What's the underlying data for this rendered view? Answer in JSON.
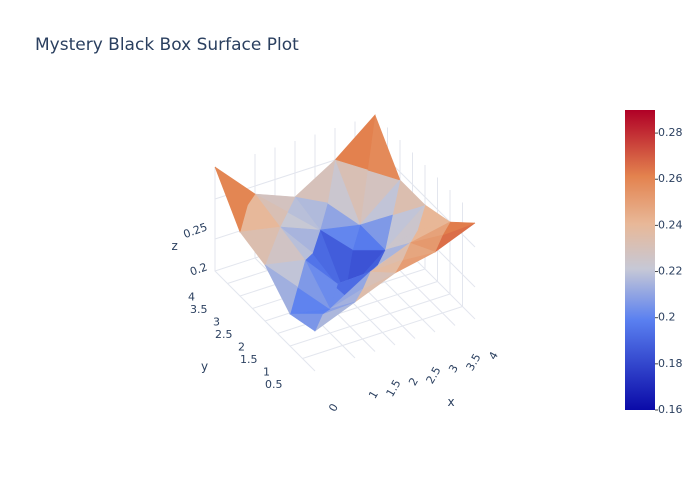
{
  "chart_data": {
    "type": "surface",
    "title": "Mystery Black Box Surface Plot",
    "x_label": "x",
    "y_label": "y",
    "z_label": "z",
    "x": [
      0,
      1,
      2,
      3,
      4
    ],
    "y": [
      0,
      1,
      2,
      3,
      4
    ],
    "z": [
      [
        0.21,
        0.23,
        0.25,
        0.26,
        0.28
      ],
      [
        0.2,
        0.19,
        0.22,
        0.24,
        0.25
      ],
      [
        0.23,
        0.22,
        0.16,
        0.2,
        0.24
      ],
      [
        0.24,
        0.23,
        0.21,
        0.2,
        0.24
      ],
      [
        0.29,
        0.24,
        0.22,
        0.25,
        0.29
      ]
    ],
    "xticks": [
      0,
      1,
      1.5,
      2,
      2.5,
      3,
      3.5,
      4
    ],
    "yticks": [
      0.5,
      1,
      1.5,
      2,
      2.5,
      3,
      3.5,
      4
    ],
    "zticks": [
      0.2,
      0.25
    ],
    "xlim": [
      0,
      4
    ],
    "ylim": [
      0,
      4
    ],
    "zlim": [
      0.16,
      0.29
    ],
    "colorscale": [
      [
        0,
        "#0a0aa8"
      ],
      [
        0.3,
        "#5a80f0"
      ],
      [
        0.47,
        "#c6c8d6"
      ],
      [
        0.62,
        "#e8b898"
      ],
      [
        0.78,
        "#e3824e"
      ],
      [
        1,
        "#b00026"
      ]
    ],
    "colorbar_range": [
      0.16,
      0.29
    ],
    "colorbar_ticks": [
      0.16,
      0.18,
      0.2,
      0.22,
      0.24,
      0.26,
      0.28
    ]
  }
}
